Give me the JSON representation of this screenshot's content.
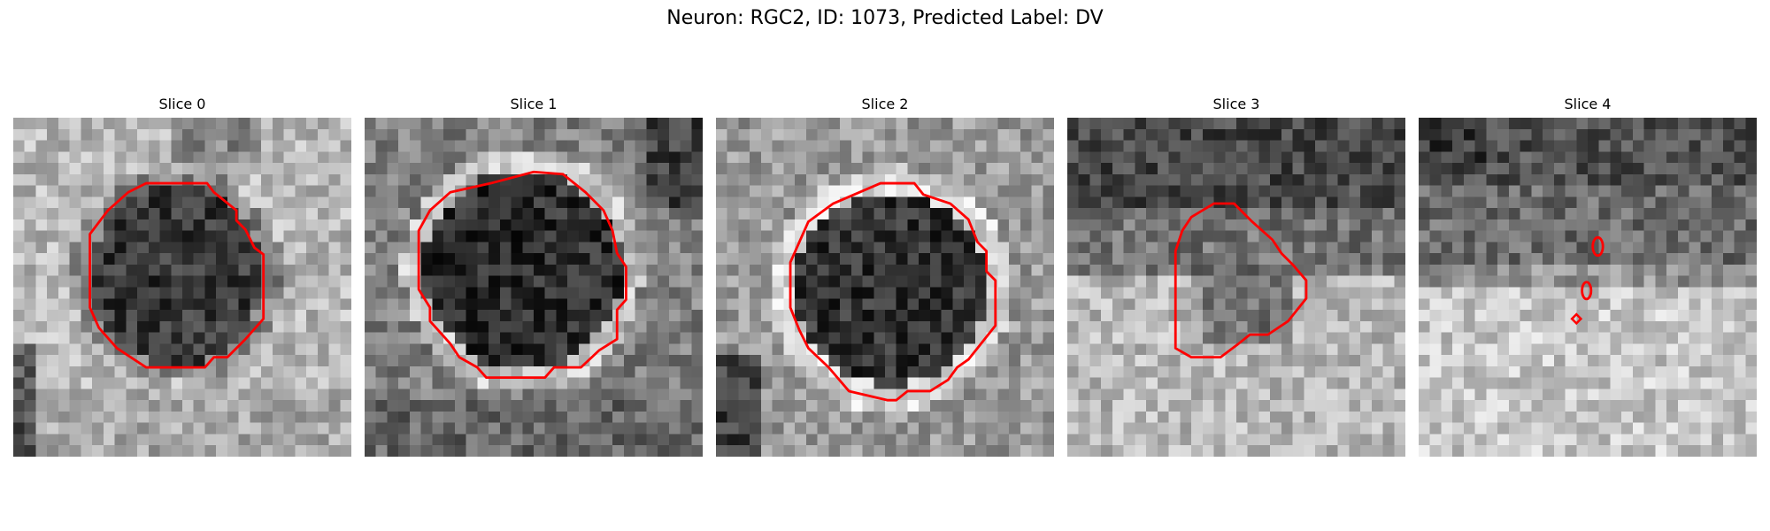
{
  "figure": {
    "title": "Neuron: RGC2, ID: 1073, Predicted Label: DV"
  },
  "colors": {
    "contour": "#ff0000"
  },
  "slices": [
    {
      "title": "Slice 0"
    },
    {
      "title": "Slice 1"
    },
    {
      "title": "Slice 2"
    },
    {
      "title": "Slice 3"
    },
    {
      "title": "Slice 4"
    }
  ]
}
